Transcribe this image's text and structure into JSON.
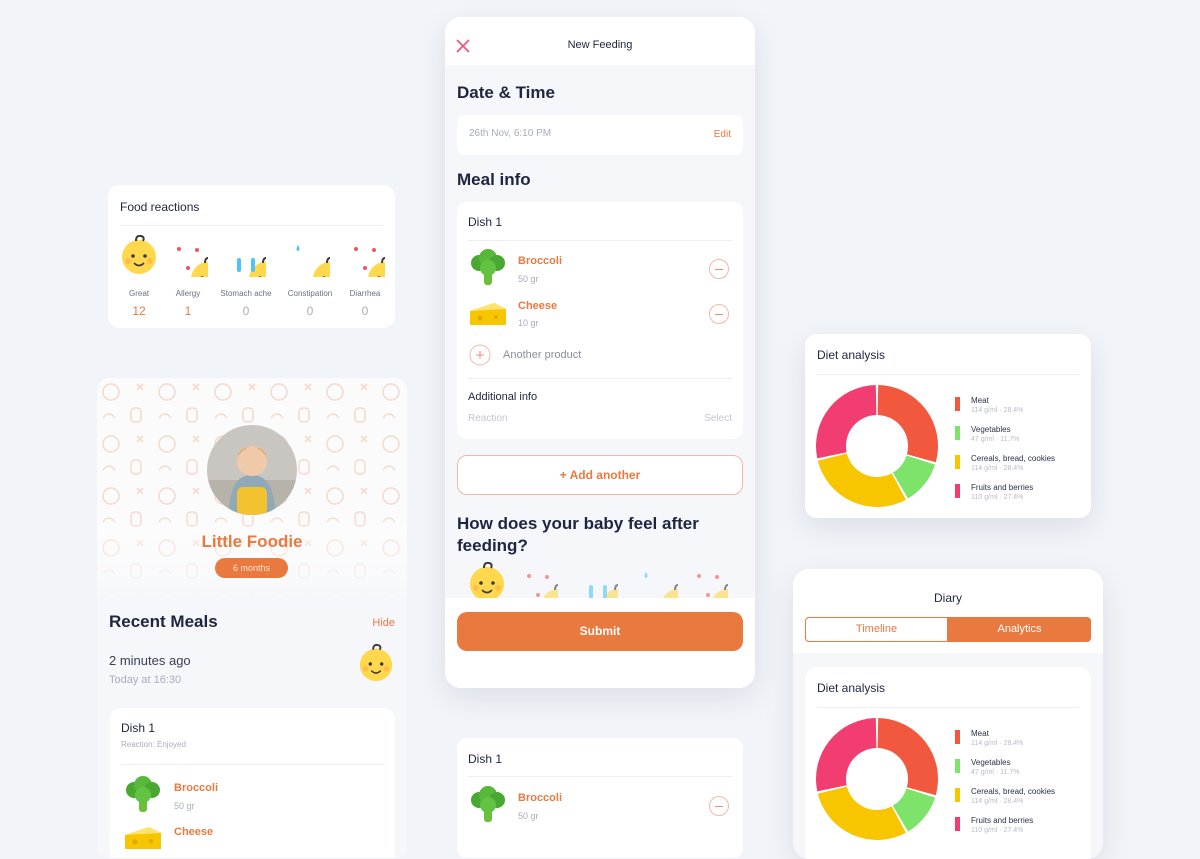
{
  "food_reactions": {
    "title": "Food reactions",
    "items": [
      {
        "name": "Great",
        "count": 12
      },
      {
        "name": "Allergy",
        "count": 1
      },
      {
        "name": "Stomach ache",
        "count": 0
      },
      {
        "name": "Constipation",
        "count": 0
      },
      {
        "name": "Diarrhea",
        "count": 0
      }
    ]
  },
  "profile": {
    "name": "Little Foodie",
    "age": "6 months",
    "recent_meals": {
      "title": "Recent Meals",
      "action": "Hide",
      "time": "2 minutes ago",
      "date": "Today at 16:30",
      "dish": {
        "title": "Dish 1",
        "reaction": "Reaction: Enjoyed",
        "products": [
          {
            "name": "Broccoli",
            "amount": "50 gr"
          },
          {
            "name": "Cheese"
          }
        ]
      }
    }
  },
  "new_feeding": {
    "title": "New Feeding",
    "date_section": "Date & Time",
    "date": "26th Nov, 6:10 PM",
    "edit": "Edit",
    "meal_section": "Meal info",
    "dish": {
      "title": "Dish 1",
      "products": [
        {
          "name": "Broccoli",
          "amount": "50 gr"
        },
        {
          "name": "Cheese",
          "amount": "10 gr"
        }
      ],
      "add_product": "Another product",
      "additional_info": "Additional info",
      "reaction_label": "Reaction",
      "reaction_value": "Select"
    },
    "add_another": "+ Add another",
    "question": "How does your baby feel after feeding?",
    "submit": "Submit"
  },
  "dish_preview": {
    "title": "Dish 1",
    "products": [
      {
        "name": "Broccoli",
        "amount": "50 gr"
      }
    ]
  },
  "diet_analysis": {
    "title": "Diet analysis",
    "type": "donut",
    "items": [
      {
        "name": "Meat",
        "value": 28.4,
        "label": "114 g/ml · 28.4%",
        "color": "#f2583e"
      },
      {
        "name": "Vegetables",
        "value": 11.7,
        "label": "47 g/ml · 11.7%",
        "color": "#7ee36b"
      },
      {
        "name": "Cereals, bread, cookies",
        "value": 28.4,
        "label": "114 g/ml · 28.4%",
        "color": "#f7c600"
      },
      {
        "name": "Fruits and berries",
        "value": 27.4,
        "label": "110 g/ml · 27.4%",
        "color": "#f23d72"
      }
    ]
  },
  "diary": {
    "title": "Diary",
    "tabs": [
      "Timeline",
      "Analytics"
    ],
    "active_tab": 1
  }
}
